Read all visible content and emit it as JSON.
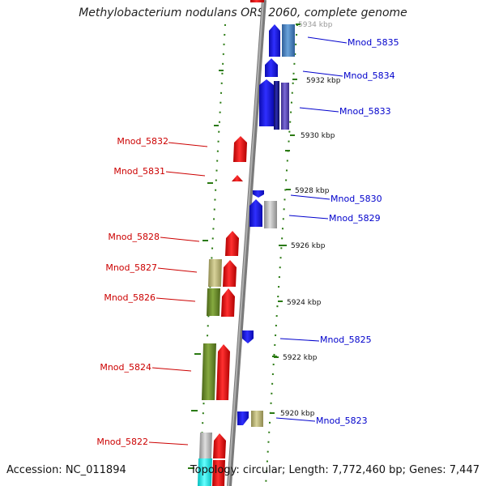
{
  "title": "Methylobacterium nodulans ORS 2060, complete genome",
  "footer": {
    "accession": "Accession: NC_011894",
    "topology": "Topology: circular; Length: 7,772,460 bp; Genes: 7,447"
  },
  "colors": {
    "plus_strand_label": "#0000cc",
    "minus_strand_label": "#cc0000",
    "backbone": "#8a8a8a",
    "gc_dots": "#2a7a12"
  },
  "ticks": [
    "5934 kbp",
    "5932 kbp",
    "5930 kbp",
    "5928 kbp",
    "5926 kbp",
    "5924 kbp",
    "5922 kbp",
    "5920 kbp"
  ],
  "plus_labels": [
    "Mnod_5835",
    "Mnod_5834",
    "Mnod_5833",
    "Mnod_5830",
    "Mnod_5829",
    "Mnod_5825",
    "Mnod_5823"
  ],
  "minus_labels": [
    "Mnod_5832",
    "Mnod_5831",
    "Mnod_5828",
    "Mnod_5827",
    "Mnod_5826",
    "Mnod_5824",
    "Mnod_5822"
  ],
  "gene_color_names": {
    "blue": "#1a1aee",
    "steelblue": "#4a86c6",
    "navy": "#1c1c8c",
    "slate": "#5a4ab8",
    "red": "#ee1111",
    "khaki": "#bdb878",
    "olive": "#6b8c2a",
    "gray": "#b8b8b8",
    "cyan": "#11eeee"
  }
}
